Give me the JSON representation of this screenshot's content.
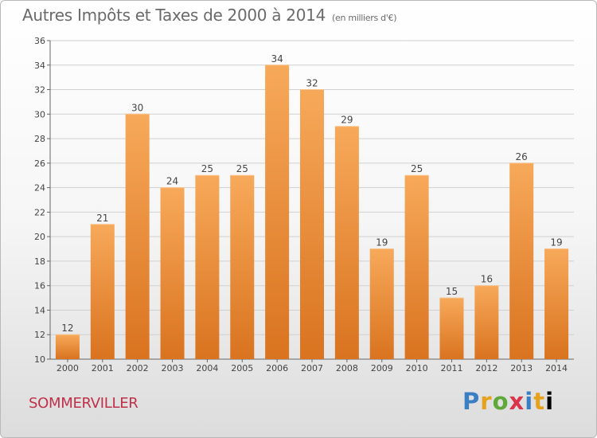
{
  "title": "Autres Impôts et Taxes de 2000 à 2014",
  "unit": "(en milliers d'€)",
  "city": "SOMMERVILLER",
  "logo": "Proxiti",
  "colors": {
    "bar_top": "#f7a95a",
    "bar_bottom": "#d9731f",
    "grid": "#d0d0d0"
  },
  "chart_data": {
    "type": "bar",
    "categories": [
      "2000",
      "2001",
      "2002",
      "2003",
      "2004",
      "2005",
      "2006",
      "2007",
      "2008",
      "2009",
      "2010",
      "2011",
      "2012",
      "2013",
      "2014"
    ],
    "values": [
      12,
      21,
      30,
      24,
      25,
      25,
      34,
      32,
      29,
      19,
      25,
      15,
      16,
      26,
      19
    ],
    "ylim": [
      10,
      36
    ],
    "ystep": 2,
    "grid": true
  }
}
